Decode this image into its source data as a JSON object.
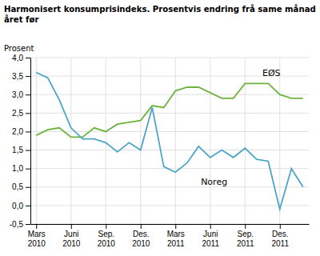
{
  "chart_data": {
    "type": "line",
    "title": "Harmonisert konsumprisindeks. Prosentvis endring frå same månad\nåret før",
    "y_label": "Prosent",
    "categories": [
      "Mars\n2010",
      null,
      null,
      "Juni\n2010",
      null,
      null,
      "Sep.\n2010",
      null,
      null,
      "Des.\n2010",
      null,
      null,
      "Mars\n2011",
      null,
      null,
      "Juni\n2011",
      null,
      null,
      "Sep.\n2011",
      null,
      null,
      "Des.\n2011",
      null,
      null
    ],
    "series": [
      {
        "color": "#6db33f",
        "values": [
          1.9,
          2.05,
          2.1,
          1.85,
          1.85,
          2.1,
          2.0,
          2.2,
          2.25,
          2.3,
          2.7,
          2.65,
          3.1,
          3.2,
          3.2,
          3.05,
          2.9,
          2.9,
          3.3,
          3.3,
          3.3,
          3.0,
          2.9,
          2.9
        ]
      },
      {
        "color": "#4da6c8",
        "values": [
          3.6,
          3.45,
          2.85,
          2.1,
          1.8,
          1.8,
          1.7,
          1.45,
          1.7,
          1.5,
          2.65,
          1.05,
          0.9,
          1.15,
          1.6,
          1.3,
          1.5,
          1.3,
          1.55,
          1.25,
          1.2,
          -0.1,
          1.0,
          0.5
        ]
      }
    ],
    "ylim": [
      -0.5,
      4.0
    ],
    "yticks": [
      {
        "value": -0.5,
        "label": "-0,5"
      },
      {
        "value": 0.0,
        "label": "0,0"
      },
      {
        "value": 0.5,
        "label": "0,5"
      },
      {
        "value": 1.0,
        "label": "1,0"
      },
      {
        "value": 1.5,
        "label": "1,5"
      },
      {
        "value": 2.0,
        "label": "2,0"
      },
      {
        "value": 2.5,
        "label": "2,5"
      },
      {
        "value": 3.0,
        "label": "3,0"
      },
      {
        "value": 3.5,
        "label": "3,5"
      },
      {
        "value": 4.0,
        "label": "4,0"
      }
    ],
    "grid": true,
    "annotations": [
      {
        "text": "EØS",
        "x": 19.5,
        "y": 3.5
      },
      {
        "text": "Noreg",
        "x": 14.2,
        "y": 0.55
      }
    ]
  }
}
